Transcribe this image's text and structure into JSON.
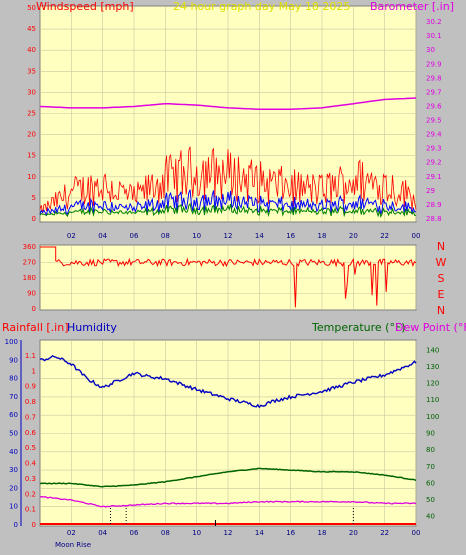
{
  "header": {
    "title": "24 hour graph day   May 18 2025",
    "left_label": "Windspeed [mph]",
    "right_label": "Barometer [.in]"
  },
  "dir_panel": {
    "right_letters": [
      "N",
      "W",
      "S",
      "E",
      "N"
    ]
  },
  "bottom_panel": {
    "rainfall_label": "Rainfall [.in]",
    "humidity_label": "Humidity",
    "temp_label": "Temperature (°F)",
    "dew_label": "Dew Point (°F)",
    "moon_label": "Moon Rise"
  },
  "colors": {
    "bg": "#c0c0c0",
    "plot": "#ffffc0",
    "grid": "#c8c8a0",
    "wind_gust": "#ff0000",
    "wind_avg": "#0000ff",
    "wind_low": "#008000",
    "barometer": "#e000e0",
    "direction": "#ff0000",
    "humidity": "#0000c0",
    "temperature": "#006400",
    "dewpoint": "#e000e0",
    "rain": "#ff0000"
  },
  "chart_data": [
    {
      "type": "line",
      "name": "wind_barometer",
      "x_ticks": [
        "02",
        "04",
        "06",
        "08",
        "10",
        "12",
        "14",
        "16",
        "18",
        "20",
        "22",
        "00"
      ],
      "left_axis": {
        "ylim": [
          0,
          50
        ],
        "ticks": [
          "0",
          "5",
          "10",
          "15",
          "20",
          "25",
          "30",
          "35",
          "40",
          "45",
          "50"
        ]
      },
      "right_axis": {
        "ylim": [
          28.8,
          30.3
        ],
        "ticks": [
          "28.8",
          "28.9",
          "29",
          "29.1",
          "29.2",
          "29.3",
          "29.4",
          "29.5",
          "29.6",
          "29.7",
          "29.8",
          "29.9",
          "30",
          "30.1",
          "30.2"
        ]
      },
      "barometer": {
        "x": [
          0,
          2,
          4,
          6,
          8,
          10,
          12,
          14,
          16,
          18,
          20,
          22,
          24
        ],
        "y": [
          29.6,
          29.59,
          29.59,
          29.6,
          29.62,
          29.61,
          29.59,
          29.58,
          29.58,
          29.59,
          29.62,
          29.65,
          29.66
        ]
      },
      "wind_gust_peak_approx": {
        "x": [
          0,
          2,
          4,
          6,
          8,
          10,
          12,
          14,
          16,
          18,
          20,
          22,
          24
        ],
        "y": [
          3,
          10,
          13,
          8,
          15,
          18,
          17,
          14,
          12,
          11,
          15,
          13,
          8
        ]
      }
    },
    {
      "type": "line",
      "name": "wind_direction",
      "left_axis": {
        "ylim": [
          0,
          360
        ],
        "ticks": [
          "0",
          "90",
          "180",
          "270",
          "360"
        ]
      },
      "typical_direction": 270
    },
    {
      "type": "line",
      "name": "humidity_temp",
      "x_ticks": [
        "02",
        "04",
        "06",
        "08",
        "10",
        "12",
        "14",
        "16",
        "18",
        "20",
        "22",
        "00"
      ],
      "left_axis_percent": {
        "ylim": [
          0,
          100
        ],
        "ticks": [
          "0",
          "10",
          "20",
          "30",
          "40",
          "50",
          "60",
          "70",
          "80",
          "90",
          "100"
        ]
      },
      "left_axis_rain": {
        "ylim": [
          0,
          1.1
        ],
        "ticks": [
          "0",
          "0.1",
          "0.2",
          "0.3",
          "0.4",
          "0.5",
          "0.6",
          "0.7",
          "0.8",
          "0.9",
          "1",
          "1.1"
        ]
      },
      "right_axis": {
        "ylim": [
          35,
          145
        ],
        "ticks": [
          "40",
          "50",
          "60",
          "70",
          "80",
          "90",
          "100",
          "110",
          "120",
          "130",
          "140"
        ]
      },
      "humidity": {
        "x": [
          0,
          1,
          2,
          3,
          4,
          5,
          6,
          7,
          8,
          10,
          12,
          14,
          15,
          16,
          18,
          20,
          22,
          24
        ],
        "y": [
          90,
          92,
          88,
          80,
          75,
          79,
          83,
          81,
          80,
          74,
          69,
          65,
          68,
          70,
          73,
          78,
          82,
          89
        ]
      },
      "temperature": {
        "x": [
          0,
          2,
          4,
          6,
          8,
          10,
          12,
          14,
          16,
          18,
          20,
          22,
          24
        ],
        "y": [
          60,
          60,
          58,
          59,
          61,
          64,
          67,
          69,
          68,
          67,
          67,
          65,
          62
        ]
      },
      "dewpoint": {
        "x": [
          0,
          2,
          4,
          6,
          8,
          10,
          12,
          14,
          16,
          18,
          20,
          22,
          24
        ],
        "y": [
          52,
          50,
          46,
          47,
          48,
          48,
          48,
          49,
          49,
          49,
          49,
          48,
          48
        ]
      },
      "rainfall": {
        "x": [
          0,
          24
        ],
        "y": [
          0,
          0
        ]
      }
    }
  ]
}
